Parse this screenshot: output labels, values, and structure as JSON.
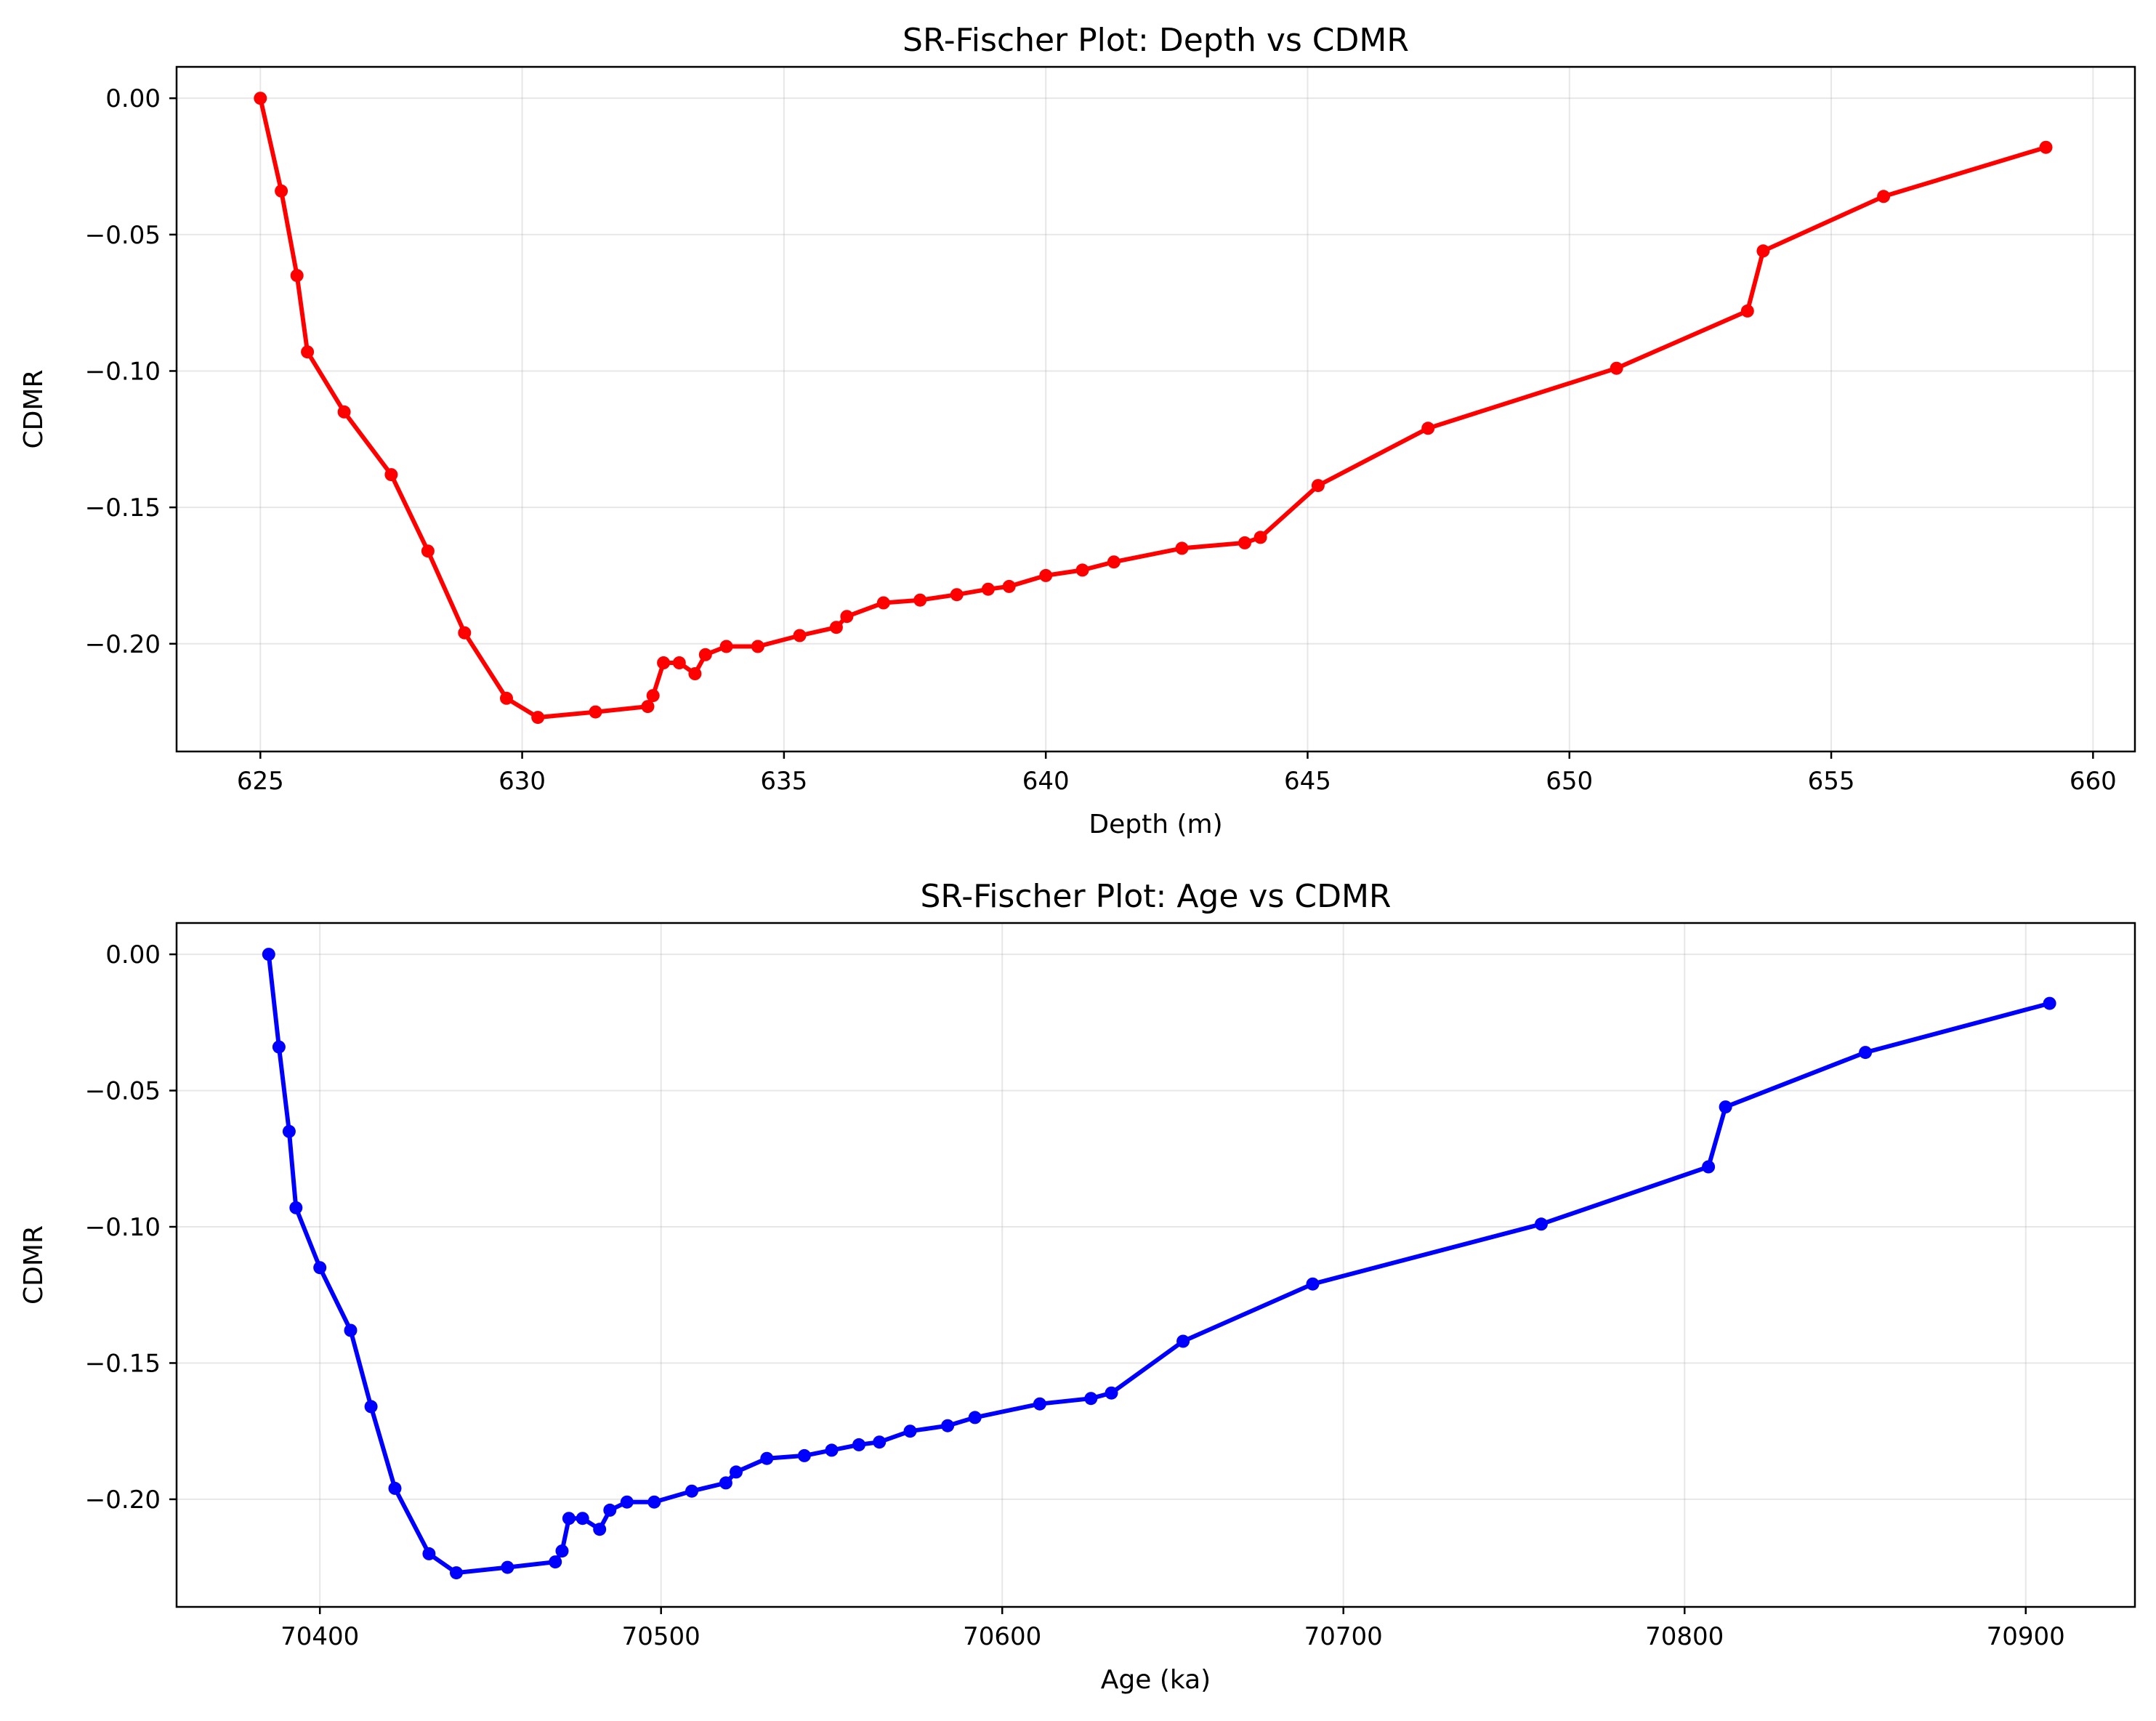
{
  "chart_data": [
    {
      "type": "line",
      "title": "SR-Fischer Plot: Depth vs CDMR",
      "xlabel": "Depth (m)",
      "ylabel": "CDMR",
      "xlim": [
        623.4,
        660.8
      ],
      "ylim": [
        -0.2395,
        0.0115
      ],
      "xticks": [
        625,
        630,
        635,
        640,
        645,
        650,
        655,
        660
      ],
      "xtick_labels": [
        "625",
        "630",
        "635",
        "640",
        "645",
        "650",
        "655",
        "660"
      ],
      "yticks": [
        0.0,
        -0.05,
        -0.1,
        -0.15,
        -0.2
      ],
      "ytick_labels": [
        "0.00",
        "−0.05",
        "−0.10",
        "−0.15",
        "−0.20"
      ],
      "grid": true,
      "legend": null,
      "color": "#ff0000",
      "series": [
        {
          "x": [
            625.0,
            625.4,
            625.7,
            625.9,
            626.6,
            627.5,
            628.2,
            628.9,
            629.7,
            630.3,
            631.4,
            632.4,
            632.5,
            632.7,
            633.0,
            633.3,
            633.5,
            633.9,
            634.5,
            635.3,
            636.0,
            636.2,
            636.9,
            637.6,
            638.3,
            638.9,
            639.3,
            640.0,
            640.7,
            641.3,
            642.6,
            643.8,
            644.1,
            645.2,
            647.3,
            650.9,
            653.4,
            653.7,
            656.0,
            659.1
          ],
          "y": [
            0.0,
            -0.034,
            -0.065,
            -0.093,
            -0.115,
            -0.138,
            -0.166,
            -0.196,
            -0.22,
            -0.227,
            -0.225,
            -0.223,
            -0.219,
            -0.207,
            -0.207,
            -0.211,
            -0.204,
            -0.201,
            -0.201,
            -0.197,
            -0.194,
            -0.19,
            -0.185,
            -0.184,
            -0.182,
            -0.18,
            -0.179,
            -0.175,
            -0.173,
            -0.17,
            -0.165,
            -0.163,
            -0.161,
            -0.142,
            -0.121,
            -0.099,
            -0.078,
            -0.056,
            -0.036,
            -0.018
          ]
        }
      ]
    },
    {
      "type": "line",
      "title": "SR-Fischer Plot: Age vs CDMR",
      "xlabel": "Age (ka)",
      "ylabel": "CDMR",
      "xlim": [
        70358,
        70932
      ],
      "ylim": [
        -0.2395,
        0.0115
      ],
      "xticks": [
        70400,
        70500,
        70600,
        70700,
        70800,
        70900
      ],
      "xtick_labels": [
        "70400",
        "70500",
        "70600",
        "70700",
        "70800",
        "70900"
      ],
      "yticks": [
        0.0,
        -0.05,
        -0.1,
        -0.15,
        -0.2
      ],
      "ytick_labels": [
        "0.00",
        "−0.05",
        "−0.10",
        "−0.15",
        "−0.20"
      ],
      "grid": true,
      "legend": null,
      "color": "#0000ff",
      "series": [
        {
          "x": [
            70385,
            70388,
            70391,
            70393,
            70400,
            70409,
            70415,
            70422,
            70432,
            70440,
            70455,
            70469,
            70471,
            70473,
            70477,
            70482,
            70485,
            70490,
            70498,
            70509,
            70519,
            70522,
            70531,
            70542,
            70550,
            70558,
            70564,
            70573,
            70584,
            70592,
            70611,
            70626,
            70632,
            70653,
            70691,
            70758,
            70807,
            70812,
            70853,
            70907
          ],
          "y": [
            0.0,
            -0.034,
            -0.065,
            -0.093,
            -0.115,
            -0.138,
            -0.166,
            -0.196,
            -0.22,
            -0.227,
            -0.225,
            -0.223,
            -0.219,
            -0.207,
            -0.207,
            -0.211,
            -0.204,
            -0.201,
            -0.201,
            -0.197,
            -0.194,
            -0.19,
            -0.185,
            -0.184,
            -0.182,
            -0.18,
            -0.179,
            -0.175,
            -0.173,
            -0.17,
            -0.165,
            -0.163,
            -0.161,
            -0.142,
            -0.121,
            -0.099,
            -0.078,
            -0.056,
            -0.036,
            -0.018
          ]
        }
      ]
    }
  ]
}
